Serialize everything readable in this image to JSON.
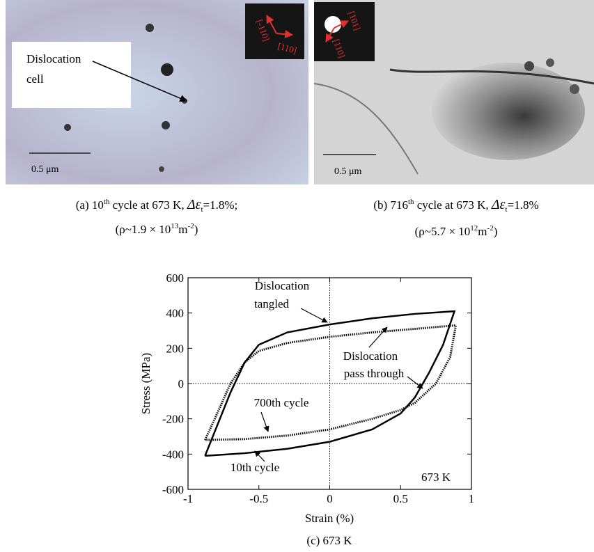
{
  "figure": {
    "panel_a": {
      "caption_line1": [
        "(a) 10",
        "th",
        " cycle at 673 K, ",
        "Δε",
        "t",
        "=1.8%;"
      ],
      "caption_line2": [
        "(ρ~1.9 × 10",
        "13",
        "m",
        "-2",
        ")"
      ],
      "annotation": [
        "Dislocation",
        "cell"
      ],
      "scale_bar": "0.5 μm",
      "diffraction": [
        "[-110]",
        "[110]"
      ]
    },
    "panel_b": {
      "caption_line1": [
        "(b) 716",
        "th",
        " cycle at 673 K, ",
        "Δε",
        "t",
        "=1.8%"
      ],
      "caption_line2": [
        "(ρ~5.7 × 10",
        "12",
        "m",
        "-2",
        ")"
      ],
      "scale_bar": "0.5 μm",
      "diffraction": [
        "[101]",
        "[110]"
      ]
    },
    "caption_c": "(c) 673 K"
  },
  "chart_data": {
    "type": "line",
    "x_label": "Strain (%)",
    "y_label": "Stress (MPa)",
    "xlim": [
      -1,
      1
    ],
    "xticks": [
      -1,
      -0.5,
      0,
      0.5,
      1
    ],
    "ylim": [
      -600,
      600
    ],
    "yticks": [
      -600,
      -400,
      -200,
      0,
      200,
      400,
      600
    ],
    "zero_lines": true,
    "annotations": [
      "Dislocation",
      "tangled",
      "Dislocation",
      "pass through",
      "700th cycle",
      "10th cycle",
      "673 K"
    ],
    "series": [
      {
        "name": "10th cycle",
        "color": "#000000",
        "dashed": false,
        "x": [
          -0.88,
          -0.8,
          -0.7,
          -0.6,
          -0.5,
          -0.3,
          0,
          0.3,
          0.6,
          0.88,
          0.8,
          0.7,
          0.6,
          0.5,
          0.3,
          0,
          -0.3,
          -0.6,
          -0.88
        ],
        "values": [
          -410,
          -250,
          -50,
          120,
          220,
          290,
          335,
          370,
          395,
          410,
          220,
          60,
          -80,
          -170,
          -260,
          -330,
          -370,
          -395,
          -410
        ]
      },
      {
        "name": "700th cycle",
        "color": "#000000",
        "dashed": true,
        "x": [
          -0.88,
          -0.8,
          -0.7,
          -0.6,
          -0.5,
          -0.3,
          0,
          0.3,
          0.6,
          0.89,
          0.85,
          0.75,
          0.6,
          0.5,
          0.3,
          0,
          -0.3,
          -0.6,
          -0.88
        ],
        "values": [
          -320,
          -180,
          0,
          120,
          185,
          230,
          265,
          290,
          310,
          330,
          150,
          0,
          -110,
          -150,
          -200,
          -260,
          -295,
          -315,
          -320
        ]
      }
    ]
  }
}
